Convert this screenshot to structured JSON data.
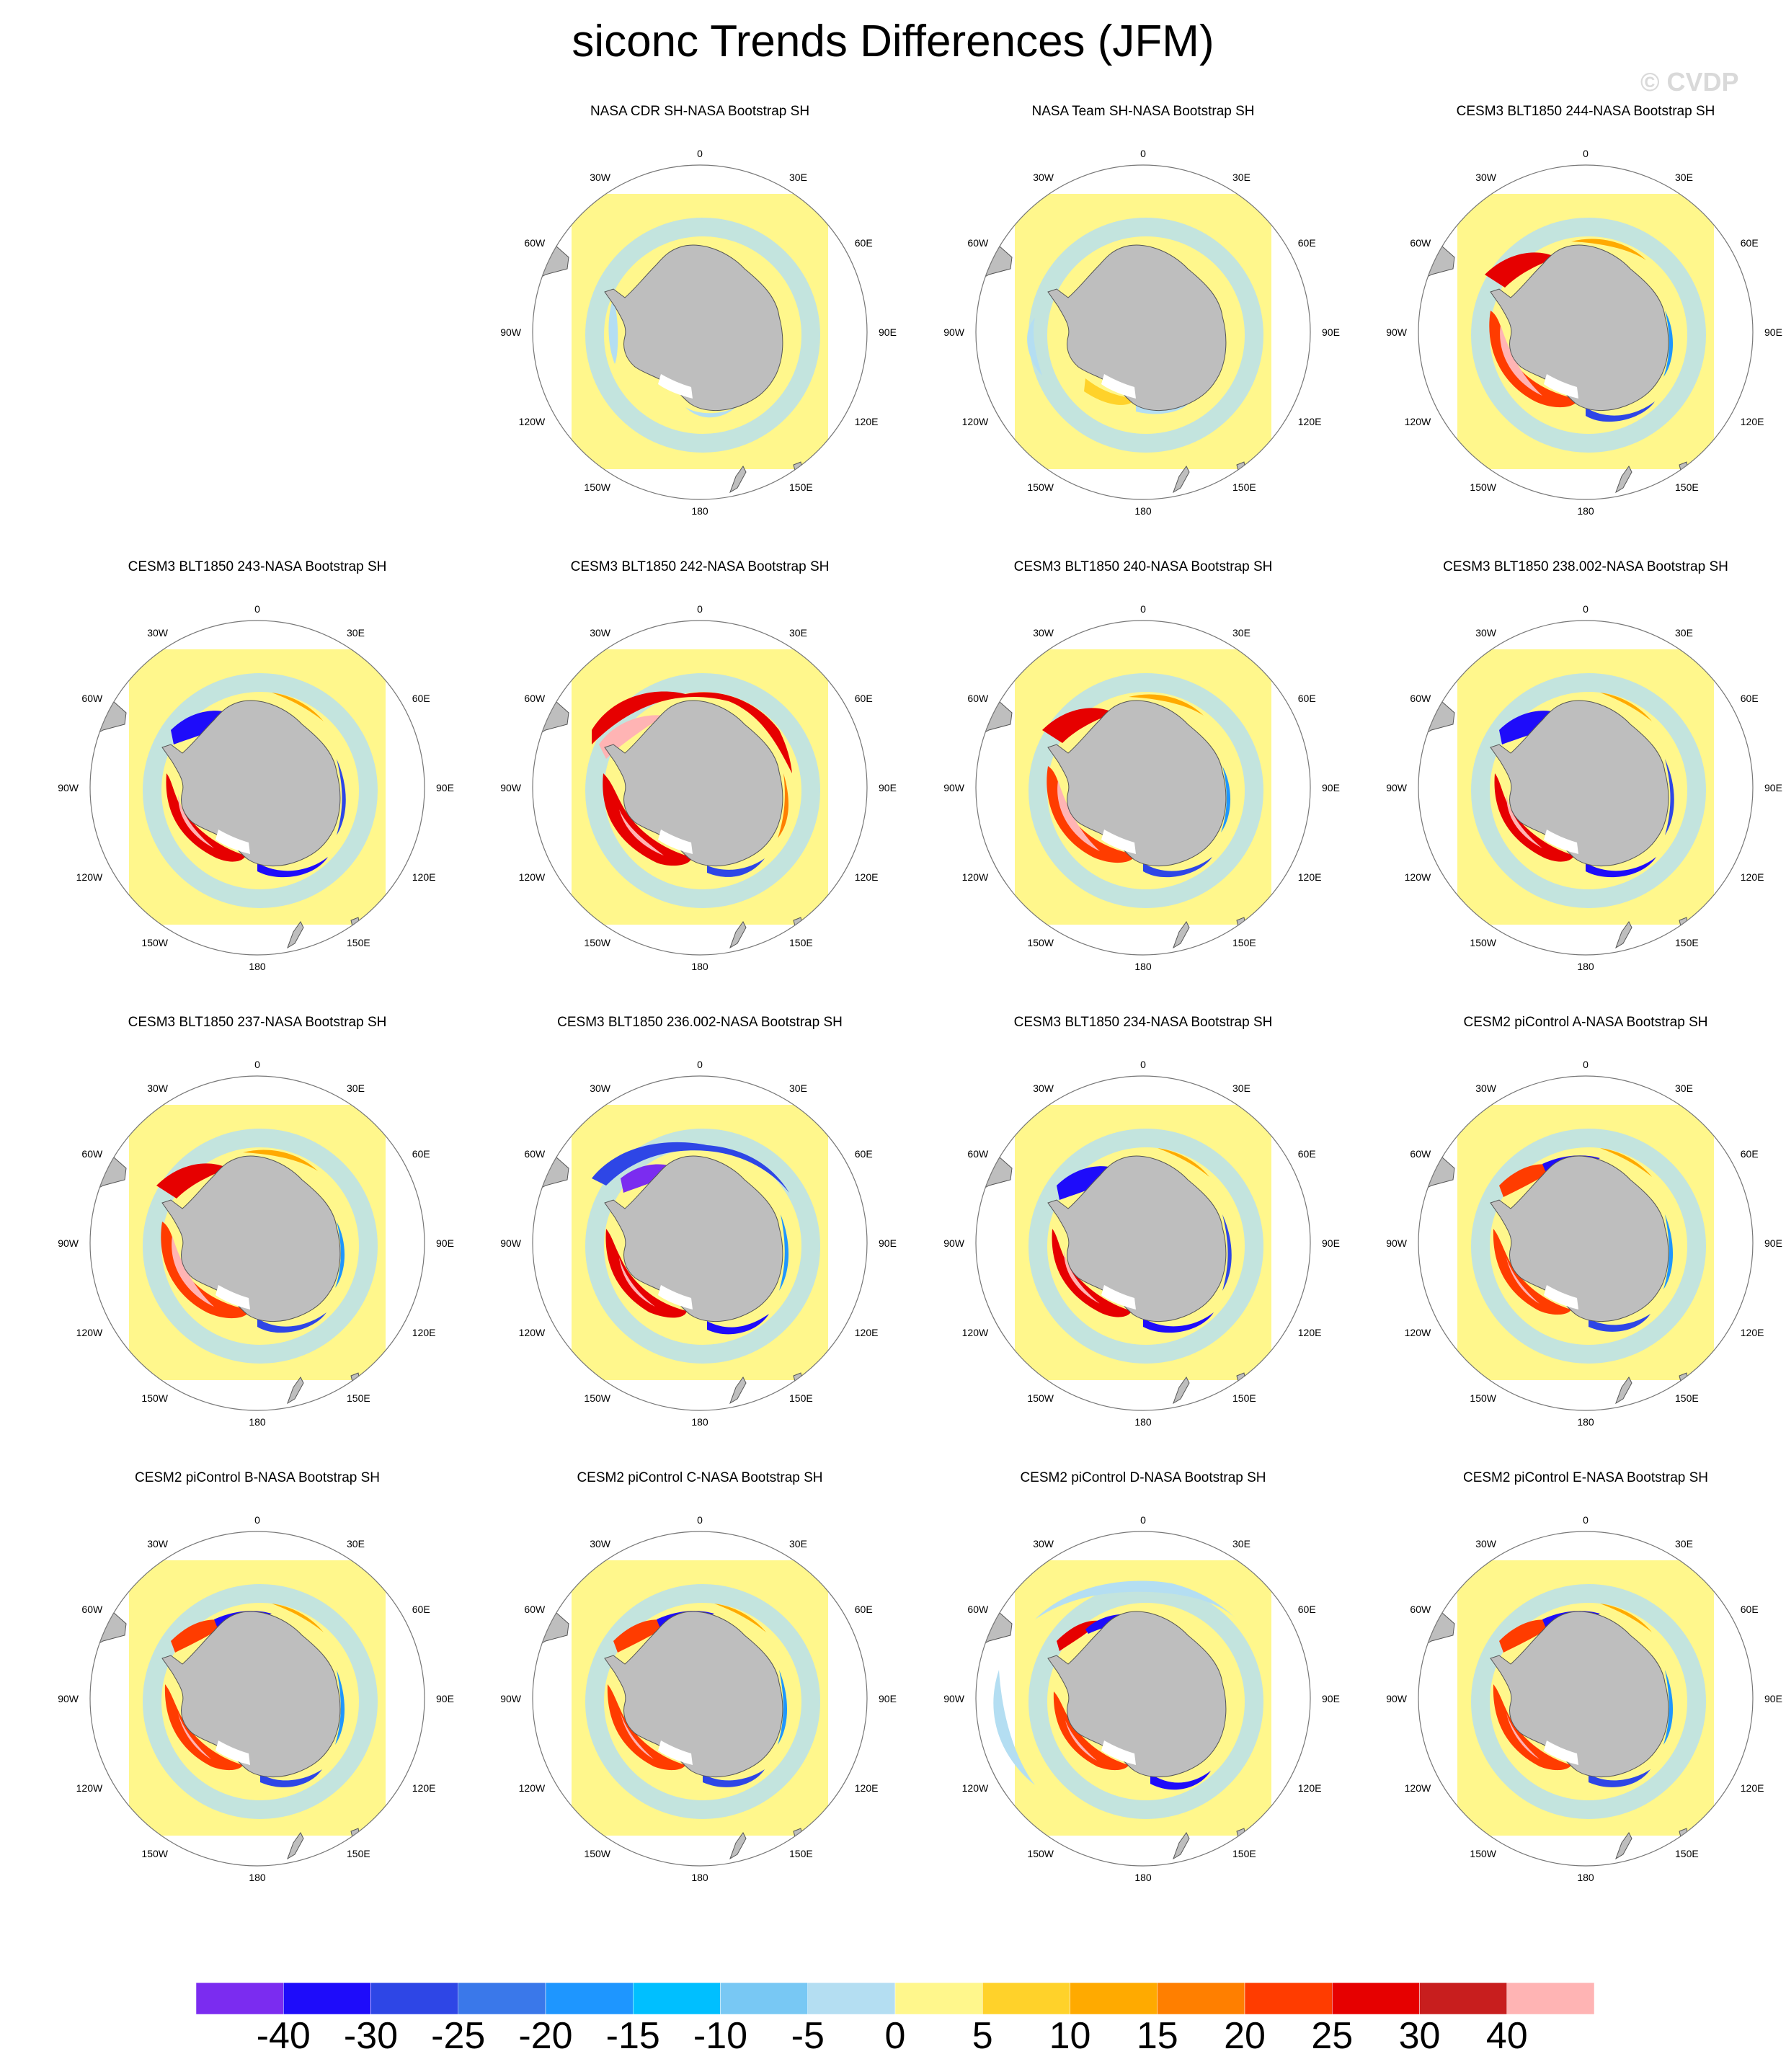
{
  "title": "siconc Trends Differences (JFM)",
  "watermark": "© CVDP",
  "longitude_labels": [
    "0",
    "30E",
    "60E",
    "90E",
    "120E",
    "150E",
    "180",
    "150W",
    "120W",
    "90W",
    "60W",
    "30W"
  ],
  "panels": [
    {
      "title": "NASA CDR SH-NASA Bootstrap SH",
      "pattern": "obs_cdr"
    },
    {
      "title": "NASA Team SH-NASA Bootstrap SH",
      "pattern": "obs_team"
    },
    {
      "title": "CESM3 BLT1850 244-NASA Bootstrap SH",
      "pattern": "model_a"
    },
    {
      "title": "CESM3 BLT1850 243-NASA Bootstrap SH",
      "pattern": "model_b"
    },
    {
      "title": "CESM3 BLT1850 242-NASA Bootstrap SH",
      "pattern": "model_warm"
    },
    {
      "title": "CESM3 BLT1850 240-NASA Bootstrap SH",
      "pattern": "model_a"
    },
    {
      "title": "CESM3 BLT1850 238.002-NASA Bootstrap SH",
      "pattern": "model_b"
    },
    {
      "title": "CESM3 BLT1850 237-NASA Bootstrap SH",
      "pattern": "model_a"
    },
    {
      "title": "CESM3 BLT1850 236.002-NASA Bootstrap SH",
      "pattern": "model_cold"
    },
    {
      "title": "CESM3 BLT1850 234-NASA Bootstrap SH",
      "pattern": "model_b"
    },
    {
      "title": "CESM2 piControl A-NASA Bootstrap SH",
      "pattern": "model_c"
    },
    {
      "title": "CESM2 piControl B-NASA Bootstrap SH",
      "pattern": "model_c"
    },
    {
      "title": "CESM2 piControl C-NASA Bootstrap SH",
      "pattern": "model_c"
    },
    {
      "title": "CESM2 piControl D-NASA Bootstrap SH",
      "pattern": "model_d"
    },
    {
      "title": "CESM2 piControl E-NASA Bootstrap SH",
      "pattern": "model_c"
    }
  ],
  "colorbar": {
    "labels": [
      "-40",
      "-30",
      "-25",
      "-20",
      "-15",
      "-10",
      "-5",
      "0",
      "5",
      "10",
      "15",
      "20",
      "25",
      "30",
      "40"
    ],
    "colors": [
      "#7b2cf0",
      "#1e0cfa",
      "#2e46e6",
      "#3a78ea",
      "#1e96ff",
      "#00bfff",
      "#78c8f4",
      "#b4def2",
      "#fff78c",
      "#ffd22a",
      "#ffaa00",
      "#ff7f00",
      "#ff3c00",
      "#e60000",
      "#c81e1e",
      "#ffb4b4"
    ]
  },
  "colors": {
    "land": "#bebebe",
    "ocean_near_zero": "#fff78c",
    "small_negative": "#b4def2"
  }
}
